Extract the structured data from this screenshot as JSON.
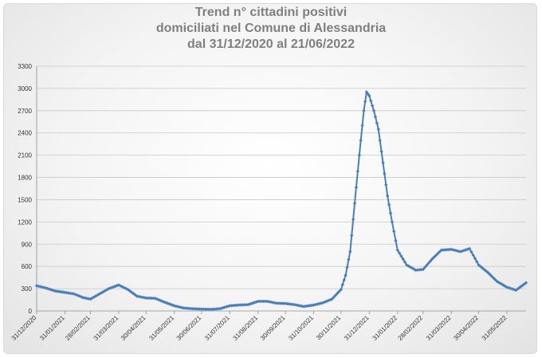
{
  "chart_data": {
    "type": "line",
    "title": [
      "Trend n° cittadini positivi",
      "domiciliati nel Comune di Alessandria",
      "dal 31/12/2020 al 21/06/2022"
    ],
    "xlabel": "",
    "ylabel": "",
    "ylim": [
      0,
      3300
    ],
    "yticks": [
      "0",
      "300",
      "600",
      "900",
      "1200",
      "1500",
      "1800",
      "2100",
      "2400",
      "2700",
      "3000",
      "3300"
    ],
    "grid": true,
    "legend": "none",
    "x_tick_labels": [
      "31/12/2020",
      "31/01/2021",
      "28/02/2021",
      "31/03/2021",
      "30/04/2021",
      "31/05/2021",
      "30/06/2021",
      "31/07/2021",
      "31/08/2021",
      "30/09/2021",
      "31/10/2021",
      "30/11/2021",
      "31/12/2021",
      "31/01/2022",
      "28/02/2022",
      "31/03/2022",
      "30/04/2022",
      "31/05/2022"
    ],
    "series_color": "#4a7ebb",
    "series": [
      {
        "name": "",
        "points": [
          [
            "31/12/2020",
            340
          ],
          [
            "10/01/2021",
            310
          ],
          [
            "20/01/2021",
            270
          ],
          [
            "31/01/2021",
            250
          ],
          [
            "10/02/2021",
            230
          ],
          [
            "20/02/2021",
            180
          ],
          [
            "28/02/2021",
            160
          ],
          [
            "10/03/2021",
            230
          ],
          [
            "20/03/2021",
            300
          ],
          [
            "31/03/2021",
            350
          ],
          [
            "10/04/2021",
            290
          ],
          [
            "20/04/2021",
            200
          ],
          [
            "30/04/2021",
            175
          ],
          [
            "10/05/2021",
            170
          ],
          [
            "20/05/2021",
            120
          ],
          [
            "31/05/2021",
            70
          ],
          [
            "10/06/2021",
            40
          ],
          [
            "20/06/2021",
            30
          ],
          [
            "30/06/2021",
            25
          ],
          [
            "10/07/2021",
            22
          ],
          [
            "20/07/2021",
            30
          ],
          [
            "31/07/2021",
            70
          ],
          [
            "10/08/2021",
            80
          ],
          [
            "20/08/2021",
            85
          ],
          [
            "31/08/2021",
            130
          ],
          [
            "10/09/2021",
            130
          ],
          [
            "20/09/2021",
            105
          ],
          [
            "30/09/2021",
            100
          ],
          [
            "10/10/2021",
            85
          ],
          [
            "20/10/2021",
            60
          ],
          [
            "31/10/2021",
            80
          ],
          [
            "10/11/2021",
            110
          ],
          [
            "20/11/2021",
            160
          ],
          [
            "30/11/2021",
            290
          ],
          [
            "05/12/2021",
            480
          ],
          [
            "10/12/2021",
            800
          ],
          [
            "15/12/2021",
            1450
          ],
          [
            "20/12/2021",
            2100
          ],
          [
            "25/12/2021",
            2700
          ],
          [
            "28/12/2021",
            2950
          ],
          [
            "31/12/2021",
            2900
          ],
          [
            "05/01/2022",
            2700
          ],
          [
            "10/01/2022",
            2450
          ],
          [
            "15/01/2022",
            2000
          ],
          [
            "20/01/2022",
            1550
          ],
          [
            "25/01/2022",
            1200
          ],
          [
            "31/01/2022",
            820
          ],
          [
            "10/02/2022",
            620
          ],
          [
            "20/02/2022",
            550
          ],
          [
            "28/02/2022",
            560
          ],
          [
            "10/03/2022",
            700
          ],
          [
            "20/03/2022",
            820
          ],
          [
            "31/03/2022",
            830
          ],
          [
            "10/04/2022",
            800
          ],
          [
            "20/04/2022",
            840
          ],
          [
            "30/04/2022",
            620
          ],
          [
            "10/05/2022",
            520
          ],
          [
            "20/05/2022",
            400
          ],
          [
            "31/05/2022",
            320
          ],
          [
            "10/06/2022",
            280
          ],
          [
            "21/06/2022",
            380
          ]
        ]
      }
    ]
  }
}
